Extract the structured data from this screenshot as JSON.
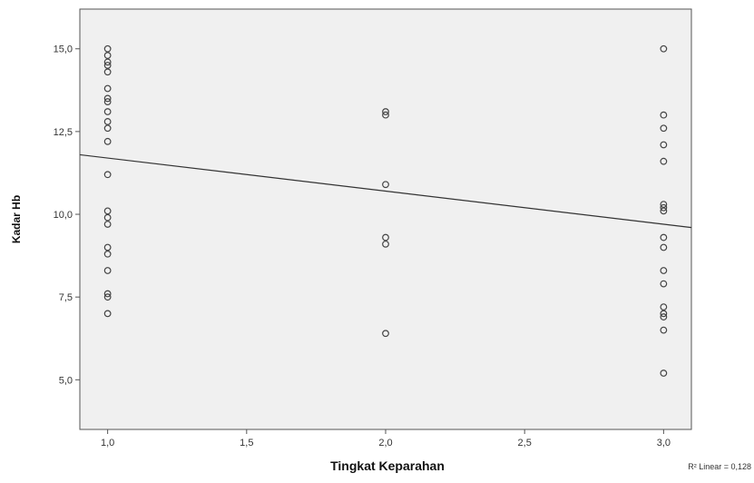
{
  "chart_data": {
    "type": "scatter",
    "xlabel": "Tingkat Keparahan",
    "ylabel": "Kadar Hb",
    "xlim": [
      0.9,
      3.1
    ],
    "ylim": [
      3.5,
      16.2
    ],
    "x_ticks": [
      1.0,
      1.5,
      2.0,
      2.5,
      3.0
    ],
    "x_tick_labels": [
      "1,0",
      "1,5",
      "2,0",
      "2,5",
      "3,0"
    ],
    "y_ticks": [
      5.0,
      7.5,
      10.0,
      12.5,
      15.0
    ],
    "y_tick_labels": [
      "5,0",
      "7,5",
      "10,0",
      "12,5",
      "15,0"
    ],
    "points": [
      {
        "x": 1,
        "y": 15.0
      },
      {
        "x": 1,
        "y": 14.8
      },
      {
        "x": 1,
        "y": 14.6
      },
      {
        "x": 1,
        "y": 14.5
      },
      {
        "x": 1,
        "y": 14.3
      },
      {
        "x": 1,
        "y": 13.8
      },
      {
        "x": 1,
        "y": 13.5
      },
      {
        "x": 1,
        "y": 13.4
      },
      {
        "x": 1,
        "y": 13.1
      },
      {
        "x": 1,
        "y": 12.8
      },
      {
        "x": 1,
        "y": 12.6
      },
      {
        "x": 1,
        "y": 12.2
      },
      {
        "x": 1,
        "y": 11.2
      },
      {
        "x": 1,
        "y": 10.1
      },
      {
        "x": 1,
        "y": 9.9
      },
      {
        "x": 1,
        "y": 9.7
      },
      {
        "x": 1,
        "y": 9.0
      },
      {
        "x": 1,
        "y": 8.8
      },
      {
        "x": 1,
        "y": 8.3
      },
      {
        "x": 1,
        "y": 7.6
      },
      {
        "x": 1,
        "y": 7.5
      },
      {
        "x": 1,
        "y": 7.0
      },
      {
        "x": 2,
        "y": 13.1
      },
      {
        "x": 2,
        "y": 13.0
      },
      {
        "x": 2,
        "y": 10.9
      },
      {
        "x": 2,
        "y": 9.3
      },
      {
        "x": 2,
        "y": 9.1
      },
      {
        "x": 2,
        "y": 6.4
      },
      {
        "x": 3,
        "y": 15.0
      },
      {
        "x": 3,
        "y": 13.0
      },
      {
        "x": 3,
        "y": 12.6
      },
      {
        "x": 3,
        "y": 12.1
      },
      {
        "x": 3,
        "y": 11.6
      },
      {
        "x": 3,
        "y": 10.3
      },
      {
        "x": 3,
        "y": 10.2
      },
      {
        "x": 3,
        "y": 10.1
      },
      {
        "x": 3,
        "y": 9.3
      },
      {
        "x": 3,
        "y": 9.0
      },
      {
        "x": 3,
        "y": 8.3
      },
      {
        "x": 3,
        "y": 7.9
      },
      {
        "x": 3,
        "y": 7.2
      },
      {
        "x": 3,
        "y": 7.0
      },
      {
        "x": 3,
        "y": 6.9
      },
      {
        "x": 3,
        "y": 6.5
      },
      {
        "x": 3,
        "y": 5.2
      }
    ],
    "fit_line": {
      "x": [
        0.9,
        3.1
      ],
      "y": [
        11.8,
        9.6
      ]
    },
    "fit_label": "R² Linear = 0,128",
    "grid": false,
    "plot_background": "#f0f0f0",
    "marker_color": "#444444",
    "line_color": "#333333"
  }
}
